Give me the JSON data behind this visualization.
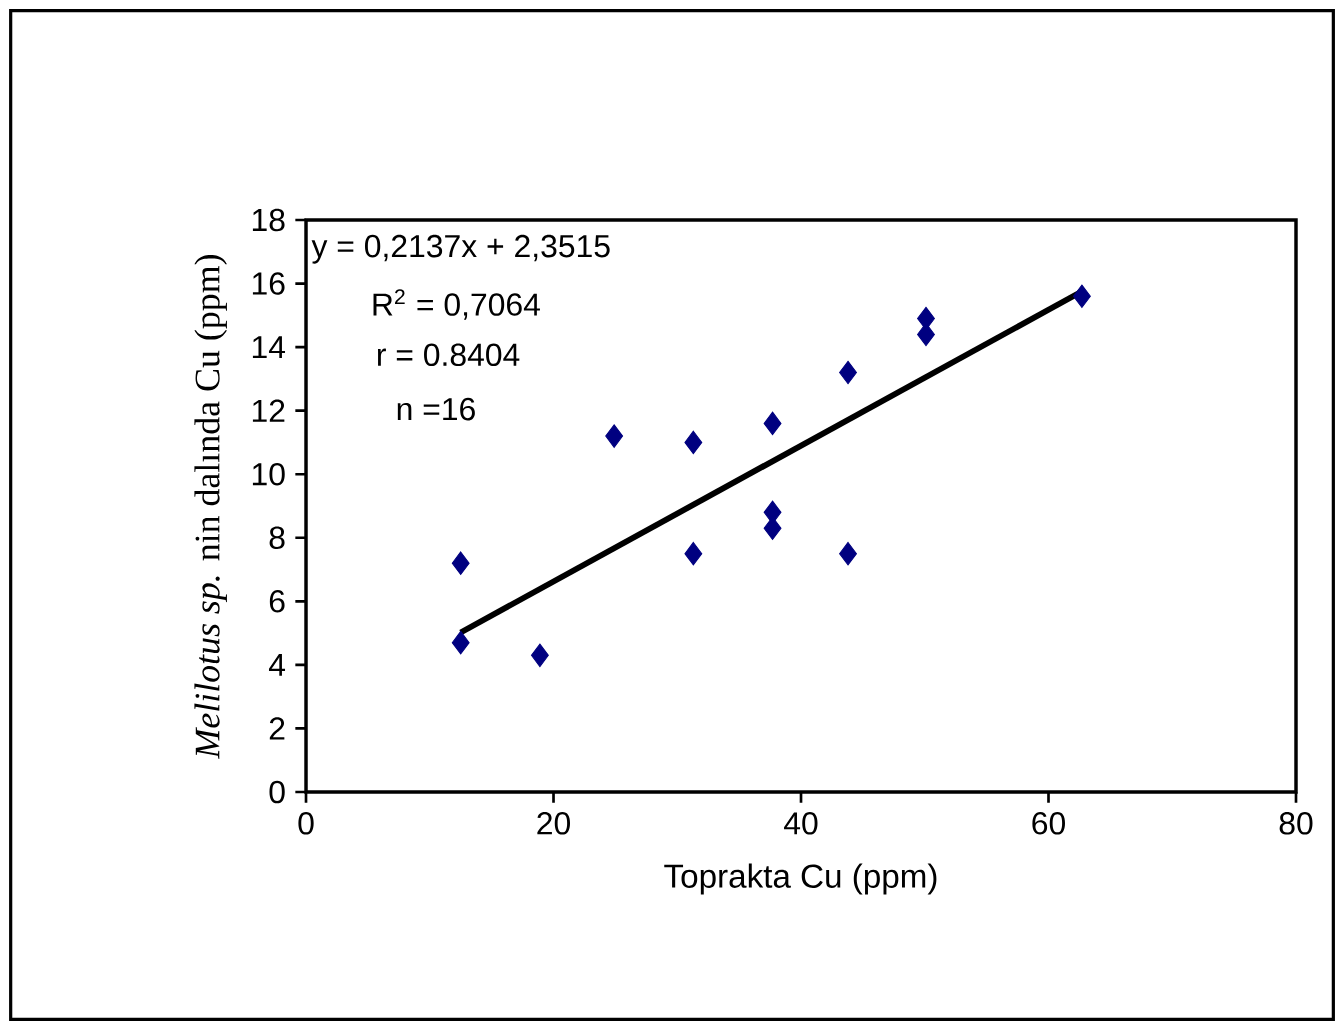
{
  "chart_data": {
    "type": "scatter",
    "xlabel": "Toprakta Cu (ppm)",
    "ylabel": "*Melilotus sp.* nin dalında Cu (ppm)",
    "annotations": [
      "y  = 0,2137x + 2,3515",
      "R$^{2}$ = 0,7064",
      "r = 0.8404",
      "n =16"
    ],
    "series": [
      {
        "color": "#000080",
        "marker": "diamond",
        "x": [
          12.5,
          12.5,
          18.9,
          24.9,
          31.3,
          31.3,
          37.7,
          37.7,
          37.7,
          43.8,
          43.8,
          50.1,
          50.1,
          62.7
        ],
        "values": [
          7.2,
          4.7,
          4.3,
          11.2,
          11.0,
          7.5,
          11.6,
          8.8,
          8.3,
          13.2,
          7.5,
          14.9,
          14.4,
          15.6
        ]
      },
      {
        "type": "line",
        "color": "#000000",
        "marker": "none",
        "x": [
          12.5,
          62.5
        ],
        "values": [
          5.02,
          15.71
        ]
      }
    ],
    "xlim": [
      0,
      80
    ],
    "xticks": [
      0,
      20,
      40,
      60,
      80
    ],
    "ylim": [
      0,
      18
    ],
    "yticks": [
      0,
      2,
      4,
      6,
      8,
      10,
      12,
      14,
      16,
      18
    ],
    "grid": false
  }
}
